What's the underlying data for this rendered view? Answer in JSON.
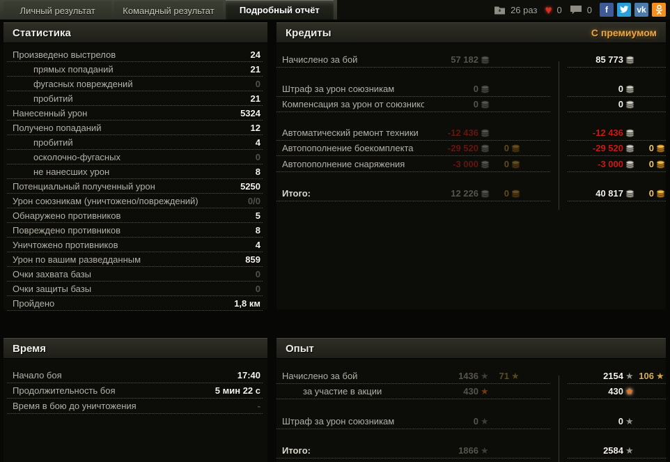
{
  "tabs": [
    {
      "name": "personal-result",
      "label": "Личный результат",
      "active": false
    },
    {
      "name": "team-result",
      "label": "Командный результат",
      "active": false
    },
    {
      "name": "detailed-report",
      "label": "Подробный отчёт",
      "active": true
    }
  ],
  "topbar": {
    "replay_count": "26 раз",
    "likes": "0",
    "comments": "0",
    "icons": [
      "replay-downloads-icon",
      "like-icon",
      "comments-icon"
    ],
    "social": [
      {
        "name": "facebook",
        "label": "f",
        "color": "#3e5b98"
      },
      {
        "name": "twitter",
        "label": "",
        "color": "#2ba0d8"
      },
      {
        "name": "vk",
        "label": "vk",
        "color": "#4e7bab"
      },
      {
        "name": "odnoklassniki",
        "label": "",
        "color": "#f18f1f"
      }
    ]
  },
  "colors": {
    "premium_accent": "#eda73f",
    "negative_value": "#cf1a13",
    "gold_value": "#eec66f"
  },
  "panels": {
    "stats": {
      "title": "Статистика",
      "rows": [
        {
          "label": "Произведено выстрелов",
          "value": "24"
        },
        {
          "label": "прямых попаданий",
          "value": "21",
          "indent": true
        },
        {
          "label": "фугасных повреждений",
          "value": "0",
          "indent": true,
          "dim": true
        },
        {
          "label": "пробитий",
          "value": "21",
          "indent": true
        },
        {
          "label": "Нанесенный урон",
          "value": "5324"
        },
        {
          "label": "Получено попаданий",
          "value": "12"
        },
        {
          "label": "пробитий",
          "value": "4",
          "indent": true
        },
        {
          "label": "осколочно-фугасных",
          "value": "0",
          "indent": true,
          "dim": true
        },
        {
          "label": "не нанесших урон",
          "value": "8",
          "indent": true
        },
        {
          "label": "Потенциальный полученный урон",
          "value": "5250"
        },
        {
          "label": "Урон союзникам (уничтожено/повреждений)",
          "value": "0/0",
          "dim": true
        },
        {
          "label": "Обнаружено противников",
          "value": "5"
        },
        {
          "label": "Повреждено противников",
          "value": "8"
        },
        {
          "label": "Уничтожено противников",
          "value": "4"
        },
        {
          "label": "Урон по вашим разведданным",
          "value": "859"
        },
        {
          "label": "Очки захвата базы",
          "value": "0",
          "dim": true
        },
        {
          "label": "Очки защиты базы",
          "value": "0",
          "dim": true
        },
        {
          "label": "Пройдено",
          "value": "1,8 км"
        }
      ]
    },
    "credits": {
      "title": "Кредиты",
      "premium_label": "С премиумом",
      "rows": [
        {
          "label": "Начислено за бой",
          "base_silver": "57 182",
          "prem_silver": "85 773",
          "gap": 13
        },
        {
          "label": "Штраф за урон союзникам",
          "base_silver": "0",
          "prem_silver": "0",
          "gap": 20
        },
        {
          "label": "Компенсация за урон от союзников",
          "base_silver": "0",
          "prem_silver": "0",
          "gap": 0
        },
        {
          "label": "Автоматический ремонт техники",
          "base_silver": "-12 436",
          "prem_silver": "-12 436",
          "negative": true,
          "gap": 19
        },
        {
          "label": "Автопополнение боекомплекта",
          "base_silver": "-29 520",
          "base_gold": "0",
          "prem_silver": "-29 520",
          "prem_gold": "0",
          "negative": true,
          "gap": 0
        },
        {
          "label": "Автопополнение снаряжения",
          "base_silver": "-3 000",
          "base_gold": "0",
          "prem_silver": "-3 000",
          "prem_gold": "0",
          "negative": true,
          "gap": 1
        },
        {
          "label": "Итого:",
          "base_silver": "12 226",
          "base_gold": "0",
          "prem_silver": "40 817",
          "prem_gold": "0",
          "total": true,
          "gap": 20
        }
      ]
    },
    "time": {
      "title": "Время",
      "rows": [
        {
          "label": "Начало боя",
          "value": "17:40"
        },
        {
          "label": "Продолжительность боя",
          "value": "5 мин 22 с"
        },
        {
          "label": "Время в бою до уничтожения",
          "value": "-",
          "dim": true
        }
      ]
    },
    "exp": {
      "title": "Опыт",
      "rows": [
        {
          "label": "Начислено за бой",
          "base_main": "1436",
          "base_main_star": "silver",
          "base_extra": "71",
          "base_extra_star": "gold",
          "prem_main": "2154",
          "prem_main_star": "silver",
          "prem_extra": "106",
          "prem_extra_star": "gold",
          "gap": 14
        },
        {
          "label": "за участие в акции",
          "indent": true,
          "base_main": "430",
          "base_main_star": "orange",
          "prem_main": "430",
          "prem_main_star": "orange",
          "gap": 0
        },
        {
          "label": "Штраф за урон союзникам",
          "base_main": "0",
          "base_main_star": "silver",
          "prem_main": "0",
          "prem_main_star": "silver",
          "gap": 21
        },
        {
          "label": "Итого:",
          "total": true,
          "base_main": "1866",
          "base_main_star": "silver",
          "prem_main": "2584",
          "prem_main_star": "silver",
          "gap": 20
        }
      ]
    }
  }
}
